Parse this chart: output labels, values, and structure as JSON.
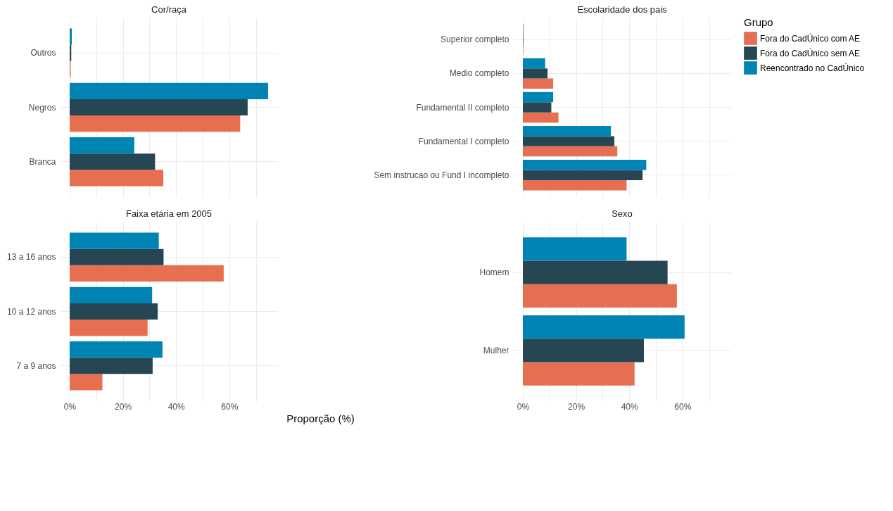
{
  "chart_data": [
    {
      "type": "bar",
      "orientation": "horizontal",
      "title": "Cor/raça",
      "categories": [
        "Outros",
        "Negros",
        "Branca"
      ],
      "xlim": [
        -3.7,
        78.3
      ],
      "xticks": [
        {
          "value": 0,
          "label": "0%"
        },
        {
          "value": 10,
          "label": null
        },
        {
          "value": 20,
          "label": "20%"
        },
        {
          "value": 30,
          "label": null
        },
        {
          "value": 40,
          "label": "40%"
        },
        {
          "value": 50,
          "label": null
        },
        {
          "value": 60,
          "label": "60%"
        },
        {
          "value": 70,
          "label": null
        }
      ],
      "tick_labels": "y",
      "grid": true,
      "legend": "right",
      "legend_title": "Grupo",
      "series": [
        {
          "name": "Fora do CadÚnico com AE",
          "color": "#e76f51",
          "values": [
            0.4,
            64.1,
            35.2
          ]
        },
        {
          "name": "Fora do CadÚnico sem AE",
          "color": "#264653",
          "values": [
            0.6,
            66.9,
            32.1
          ]
        },
        {
          "name": "Reencontrado no CadÚnico",
          "color": "#0084b4",
          "values": [
            0.8,
            74.6,
            24.3
          ]
        }
      ]
    },
    {
      "type": "bar",
      "orientation": "horizontal",
      "title": "Escolaridade dos pais",
      "categories": [
        "Superior completo",
        "Medio completo",
        "Fundamental II completo",
        "Fundamental I completo",
        "Sem instrucao ou Fund I incompleto"
      ],
      "xlim": [
        -3.7,
        78.3
      ],
      "xticks": [
        {
          "value": 0,
          "label": "0%"
        },
        {
          "value": 10,
          "label": null
        },
        {
          "value": 20,
          "label": "20%"
        },
        {
          "value": 30,
          "label": null
        },
        {
          "value": 40,
          "label": "40%"
        },
        {
          "value": 50,
          "label": null
        },
        {
          "value": 60,
          "label": "60%"
        },
        {
          "value": 70,
          "label": null
        }
      ],
      "tick_labels": "y",
      "grid": true,
      "series": [
        {
          "name": "Fora do CadÚnico com AE",
          "color": "#e76f51",
          "values": [
            0.2,
            11.4,
            13.4,
            35.5,
            39.0
          ]
        },
        {
          "name": "Fora do CadÚnico sem AE",
          "color": "#264653",
          "values": [
            0.2,
            9.3,
            10.7,
            34.4,
            45.0
          ]
        },
        {
          "name": "Reencontrado no CadÚnico",
          "color": "#0084b4",
          "values": [
            0.2,
            8.4,
            11.4,
            33.1,
            46.4
          ]
        }
      ]
    },
    {
      "type": "bar",
      "orientation": "horizontal",
      "title": "Faixa etária em 2005",
      "xlabel": "Proporção (%)",
      "categories": [
        "13 a 16 anos",
        "10 a 12 anos",
        "7 a 9 anos"
      ],
      "xlim": [
        -3.7,
        78.3
      ],
      "xticks": [
        {
          "value": 0,
          "label": "0%"
        },
        {
          "value": 10,
          "label": null
        },
        {
          "value": 20,
          "label": "20%"
        },
        {
          "value": 30,
          "label": null
        },
        {
          "value": 40,
          "label": "40%"
        },
        {
          "value": 50,
          "label": null
        },
        {
          "value": 60,
          "label": "60%"
        },
        {
          "value": 70,
          "label": null
        }
      ],
      "grid": true,
      "series": [
        {
          "name": "Fora do CadÚnico com AE",
          "color": "#e76f51",
          "values": [
            57.9,
            29.3,
            12.3
          ]
        },
        {
          "name": "Fora do CadÚnico sem AE",
          "color": "#264653",
          "values": [
            35.3,
            33.1,
            31.2
          ]
        },
        {
          "name": "Reencontrado no CadÚnico",
          "color": "#0084b4",
          "values": [
            33.5,
            31.0,
            34.9
          ]
        }
      ]
    },
    {
      "type": "bar",
      "orientation": "horizontal",
      "title": "Sexo",
      "categories": [
        "Homem",
        "Mulher"
      ],
      "xlim": [
        -3.7,
        78.3
      ],
      "xticks": [
        {
          "value": 0,
          "label": "0%"
        },
        {
          "value": 10,
          "label": null
        },
        {
          "value": 20,
          "label": "20%"
        },
        {
          "value": 30,
          "label": null
        },
        {
          "value": 40,
          "label": "40%"
        },
        {
          "value": 50,
          "label": null
        },
        {
          "value": 60,
          "label": "60%"
        },
        {
          "value": 70,
          "label": null
        }
      ],
      "grid": true,
      "series": [
        {
          "name": "Fora do CadÚnico com AE",
          "color": "#e76f51",
          "values": [
            57.9,
            42.0
          ]
        },
        {
          "name": "Fora do CadÚnico sem AE",
          "color": "#264653",
          "values": [
            54.4,
            45.5
          ]
        },
        {
          "name": "Reencontrado no CadÚnico",
          "color": "#0084b4",
          "values": [
            39.0,
            60.8
          ]
        }
      ]
    }
  ]
}
